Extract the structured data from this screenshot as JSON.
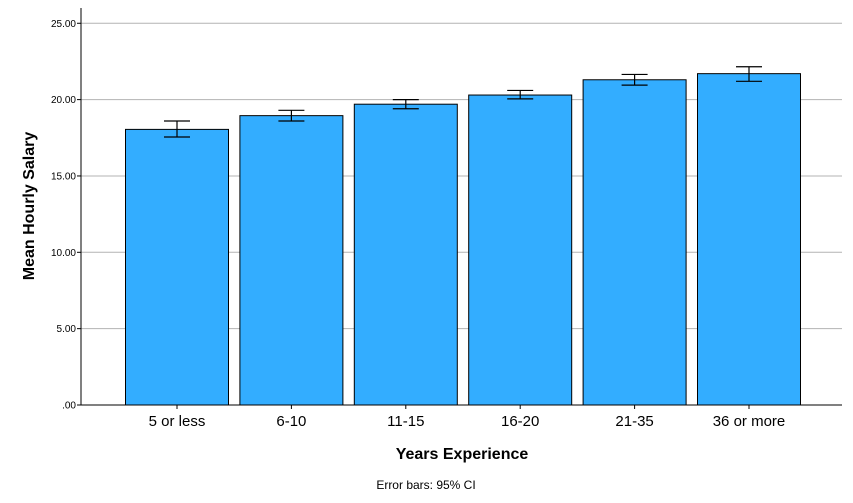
{
  "chart_data": {
    "type": "bar",
    "categories": [
      "5 or less",
      "6-10",
      "11-15",
      "16-20",
      "21-35",
      "36 or more"
    ],
    "values": [
      18.05,
      18.95,
      19.7,
      20.3,
      21.3,
      21.7
    ],
    "error_low": [
      17.55,
      18.6,
      19.4,
      20.05,
      20.95,
      21.2
    ],
    "error_high": [
      18.6,
      19.3,
      20.0,
      20.6,
      21.65,
      22.15
    ],
    "ylim": [
      0,
      25
    ],
    "yticks": [
      0,
      5,
      10,
      15,
      20,
      25
    ],
    "ytick_labels": [
      ".00",
      "5.00",
      "10.00",
      "15.00",
      "20.00",
      "25.00"
    ],
    "xlabel": "Years Experience",
    "ylabel": "Mean Hourly Salary",
    "footnote": "Error bars: 95% CI",
    "grid": true,
    "bar_color": "#33adff",
    "bar_edge_color": "#000000",
    "grid_color": "#b3b3b3"
  }
}
